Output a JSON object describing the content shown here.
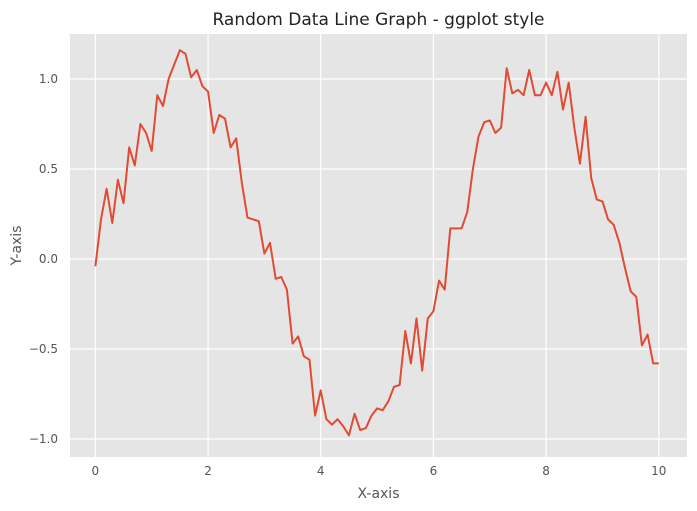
{
  "chart_data": {
    "type": "line",
    "style": "ggplot",
    "title": "Random Data Line Graph - ggplot style",
    "xlabel": "X-axis",
    "ylabel": "Y-axis",
    "xlim": [
      -0.45,
      10.5
    ],
    "ylim": [
      -1.1,
      1.25
    ],
    "xticks": [
      0,
      2,
      4,
      6,
      8,
      10
    ],
    "xtick_labels": [
      "0",
      "2",
      "4",
      "6",
      "8",
      "10"
    ],
    "yticks": [
      -1.0,
      -0.5,
      0.0,
      0.5,
      1.0
    ],
    "ytick_labels": [
      "−1.0",
      "−0.5",
      "0.0",
      "0.5",
      "1.0"
    ],
    "grid": true,
    "colors": {
      "line": "#E24A33",
      "panel": "#E5E5E5",
      "grid": "#FFFFFF"
    },
    "series": [
      {
        "x": [
          0.0,
          0.1,
          0.2,
          0.3,
          0.4,
          0.5,
          0.6,
          0.7,
          0.8,
          0.9,
          1.0,
          1.1,
          1.2,
          1.3,
          1.4,
          1.5,
          1.6,
          1.7,
          1.8,
          1.9,
          2.0,
          2.1,
          2.2,
          2.3,
          2.4,
          2.5,
          2.6,
          2.7,
          2.8,
          2.9,
          3.0,
          3.1,
          3.2,
          3.3,
          3.4,
          3.5,
          3.6,
          3.7,
          3.8,
          3.9,
          4.0,
          4.1,
          4.2,
          4.3,
          4.4,
          4.5,
          4.6,
          4.7,
          4.8,
          4.9,
          5.0,
          5.1,
          5.2,
          5.3,
          5.4,
          5.5,
          5.6,
          5.7,
          5.8,
          5.9,
          6.0,
          6.1,
          6.2,
          6.3,
          6.4,
          6.5,
          6.6,
          6.7,
          6.8,
          6.9,
          7.0,
          7.1,
          7.2,
          7.3,
          7.4,
          7.5,
          7.6,
          7.7,
          7.8,
          7.9,
          8.0,
          8.1,
          8.2,
          8.3,
          8.4,
          8.5,
          8.6,
          8.7,
          8.8,
          8.9,
          9.0,
          9.1,
          9.2,
          9.3,
          9.4,
          9.5,
          9.6,
          9.7,
          9.8,
          9.9,
          10.0
        ],
        "y": [
          -0.04,
          0.22,
          0.39,
          0.2,
          0.44,
          0.31,
          0.62,
          0.52,
          0.75,
          0.7,
          0.6,
          0.91,
          0.85,
          1.0,
          1.08,
          1.16,
          1.14,
          1.01,
          1.05,
          0.96,
          0.93,
          0.7,
          0.8,
          0.78,
          0.62,
          0.67,
          0.42,
          0.23,
          0.22,
          0.21,
          0.03,
          0.09,
          -0.11,
          -0.1,
          -0.17,
          -0.47,
          -0.43,
          -0.54,
          -0.56,
          -0.87,
          -0.73,
          -0.89,
          -0.92,
          -0.89,
          -0.93,
          -0.98,
          -0.86,
          -0.95,
          -0.94,
          -0.87,
          -0.83,
          -0.84,
          -0.79,
          -0.71,
          -0.7,
          -0.4,
          -0.58,
          -0.33,
          -0.62,
          -0.33,
          -0.29,
          -0.12,
          -0.17,
          0.17,
          0.17,
          0.17,
          0.26,
          0.5,
          0.68,
          0.76,
          0.77,
          0.7,
          0.73,
          1.06,
          0.92,
          0.94,
          0.91,
          1.05,
          0.91,
          0.91,
          0.98,
          0.91,
          1.04,
          0.83,
          0.98,
          0.73,
          0.53,
          0.79,
          0.45,
          0.33,
          0.32,
          0.22,
          0.19,
          0.09,
          -0.05,
          -0.18,
          -0.21,
          -0.48,
          -0.42,
          -0.58,
          -0.58
        ]
      }
    ]
  }
}
